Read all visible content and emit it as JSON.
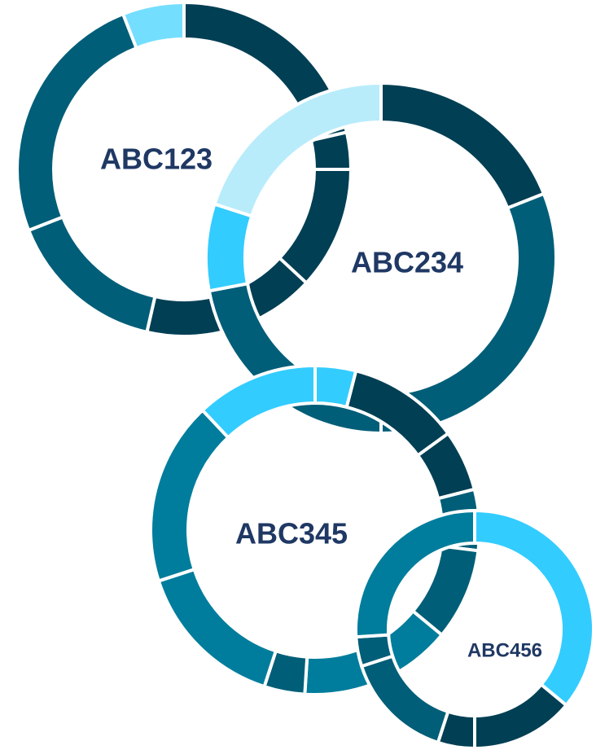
{
  "chart_data": [
    {
      "type": "pie",
      "name": "ABC123",
      "slices": [
        {
          "value": 18,
          "color": "#003f54"
        },
        {
          "value": 3,
          "color": "#003f54"
        },
        {
          "value": 10,
          "color": "#003f54"
        },
        {
          "value": 14,
          "color": "#003f54"
        },
        {
          "value": 13,
          "color": "#005e78"
        },
        {
          "value": 21,
          "color": "#005e78"
        },
        {
          "value": 5,
          "color": "#74deff"
        }
      ]
    },
    {
      "type": "pie",
      "name": "ABC234",
      "slices": [
        {
          "value": 19,
          "color": "#003f54"
        },
        {
          "value": 31,
          "color": "#005e78"
        },
        {
          "value": 22,
          "color": "#005e78"
        },
        {
          "value": 8,
          "color": "#33ccff"
        },
        {
          "value": 20,
          "color": "#b8ecfb"
        }
      ]
    },
    {
      "type": "pie",
      "name": "ABC345",
      "slices": [
        {
          "value": 4,
          "color": "#33ccff"
        },
        {
          "value": 11,
          "color": "#003f54"
        },
        {
          "value": 6,
          "color": "#003f54"
        },
        {
          "value": 6,
          "color": "#005e78"
        },
        {
          "value": 9,
          "color": "#005e78"
        },
        {
          "value": 15,
          "color": "#007d9c"
        },
        {
          "value": 4,
          "color": "#005e78"
        },
        {
          "value": 15,
          "color": "#007d9c"
        },
        {
          "value": 18,
          "color": "#007d9c"
        },
        {
          "value": 12,
          "color": "#33ccff"
        }
      ]
    },
    {
      "type": "pie",
      "name": "ABC456",
      "slices": [
        {
          "value": 36,
          "color": "#33ccff"
        },
        {
          "value": 14,
          "color": "#003f54"
        },
        {
          "value": 5,
          "color": "#003f54"
        },
        {
          "value": 15,
          "color": "#005e78"
        },
        {
          "value": 4,
          "color": "#005e78"
        },
        {
          "value": 26,
          "color": "#007d9c"
        }
      ]
    }
  ]
}
